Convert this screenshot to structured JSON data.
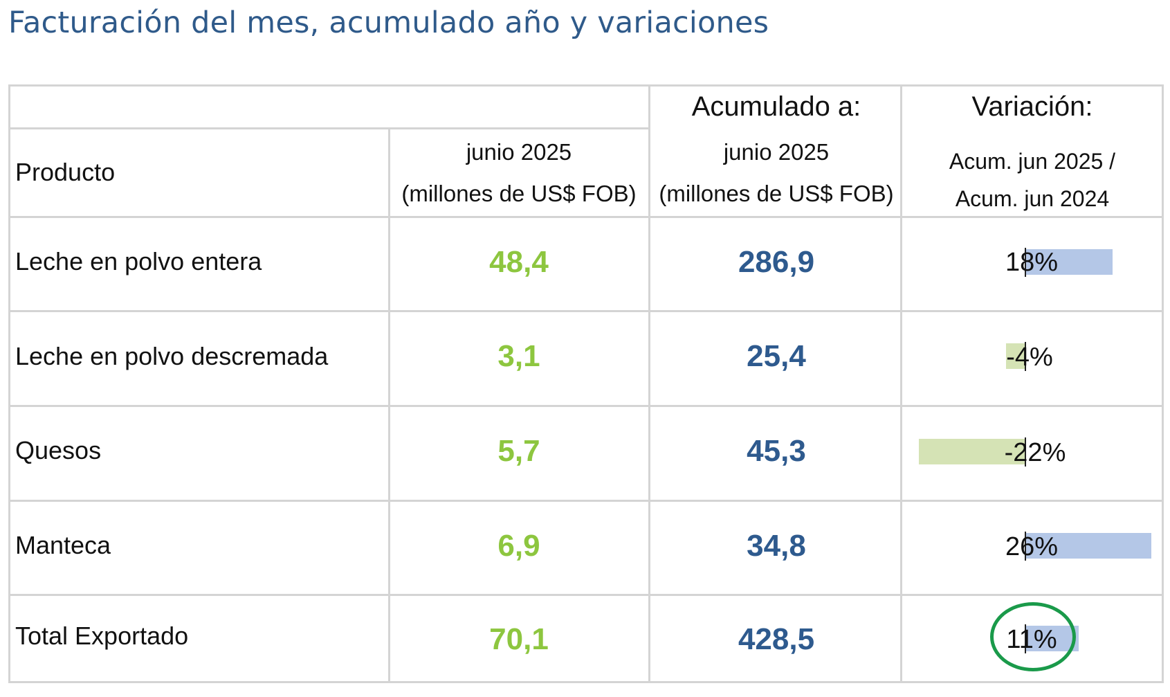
{
  "title": "Facturación del mes, acumulado año y variaciones",
  "header": {
    "producto": "Producto",
    "month_col": {
      "line1": "junio 2025",
      "line2": "(millones de US$ FOB)"
    },
    "acum_col": {
      "top": "Acumulado a:",
      "line1": "junio 2025",
      "line2": "(millones de US$ FOB)"
    },
    "var_col": {
      "top": "Variación:",
      "line1": "Acum. jun 2025 /",
      "line2": "Acum. jun 2024"
    }
  },
  "rows": [
    {
      "product": "Leche en polvo entera",
      "month": "48,4",
      "acum": "286,9",
      "variation": "18%",
      "variation_value": 18
    },
    {
      "product": "Leche en polvo descremada",
      "month": "3,1",
      "acum": "25,4",
      "variation": "-4%",
      "variation_value": -4
    },
    {
      "product": "Quesos",
      "month": "5,7",
      "acum": "45,3",
      "variation": "-22%",
      "variation_value": -22
    },
    {
      "product": "Manteca",
      "month": "6,9",
      "acum": "34,8",
      "variation": "26%",
      "variation_value": 26
    },
    {
      "product": "Total Exportado",
      "month": "70,1",
      "acum": "428,5",
      "variation": "11%",
      "variation_value": 11
    }
  ],
  "colors": {
    "title": "#2f5a8a",
    "month_value": "#8dc63f",
    "acum_value": "#2e5a8e",
    "bar_positive": "#b4c7e7",
    "bar_negative": "#d5e3b5",
    "highlight": "#1a9a4a"
  }
}
